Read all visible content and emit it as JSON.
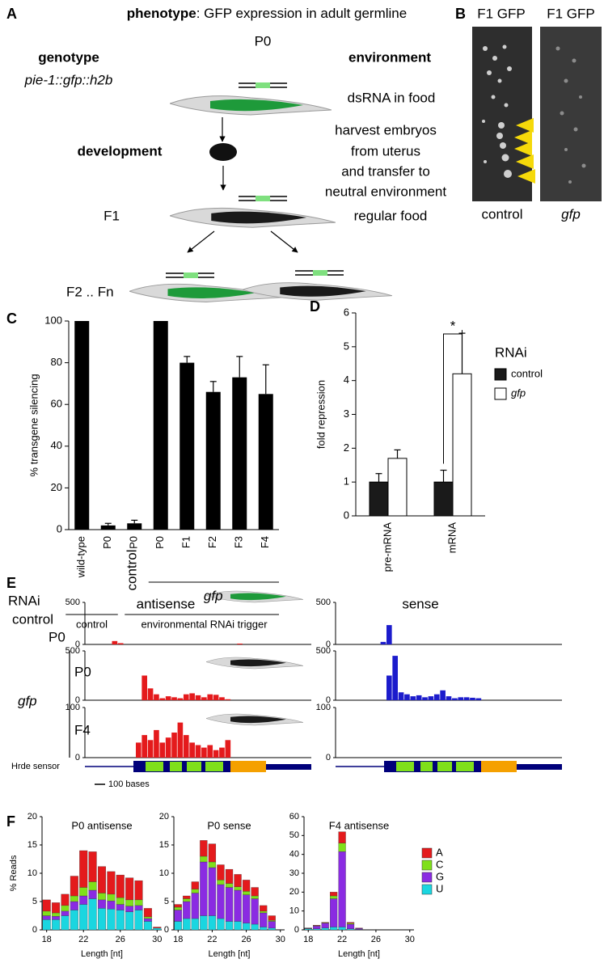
{
  "panel_labels": [
    "A",
    "B",
    "C",
    "D",
    "E",
    "F"
  ],
  "panel_a": {
    "title_bold": "phenotype",
    "title_rest": ": GFP expression in adult germline",
    "p0": "P0",
    "genotype": "genotype",
    "genotype_name": "pie-1::gfp::h2b",
    "environment": "environment",
    "dsrna": "dsRNA in food",
    "development": "development",
    "harvest": [
      "harvest embryos",
      "from uterus",
      "and transfer to",
      "neutral environment"
    ],
    "f1": "F1",
    "regular_food": "regular food",
    "f2": "F2 .. Fn"
  },
  "panel_b": {
    "titles": [
      "F1 GFP",
      "F1 GFP"
    ],
    "captions": [
      "control",
      "gfp"
    ]
  },
  "panel_e": {
    "rnai": "RNAi",
    "control": "control",
    "control_gen": "P0",
    "gfp": "gfp",
    "gfp_gens": [
      "P0",
      "F4"
    ],
    "strands": [
      "antisense",
      "sense"
    ],
    "gene": "Hrde sensor",
    "scale": "100 bases"
  },
  "chart_data": [
    {
      "type": "bar",
      "y_label": "% transgene silencing",
      "categories": [
        "wild-type",
        "P0",
        "P0",
        "P0",
        "F1",
        "F2",
        "F3",
        "F4"
      ],
      "values": [
        100,
        2,
        3,
        100,
        80,
        66,
        73,
        65
      ],
      "errors": [
        0,
        1,
        1.5,
        0,
        3,
        5,
        10,
        14
      ],
      "color": "#000000",
      "ylim": [
        0,
        100
      ],
      "yticks": [
        0,
        20,
        40,
        60,
        80,
        100
      ],
      "group_labels": [
        "control",
        "control",
        "gfp",
        "environmental RNAi trigger"
      ]
    },
    {
      "type": "grouped_bar",
      "y_label": "fold repression",
      "categories": [
        "pre-mRNA",
        "mRNA"
      ],
      "series": [
        {
          "name": "control",
          "color": "#1a1a1a",
          "values": [
            1,
            1
          ],
          "errors": [
            0.25,
            0.35
          ]
        },
        {
          "name": "gfp",
          "color": "#ffffff",
          "values": [
            1.7,
            4.2
          ],
          "errors": [
            0.25,
            1.2
          ]
        }
      ],
      "ylim": [
        0,
        6
      ],
      "yticks": [
        0,
        1,
        2,
        3,
        4,
        5,
        6
      ],
      "legend_title": "RNAi",
      "annotation": "*"
    },
    {
      "type": "coverage",
      "color": "#e41a1c",
      "xlim": [
        0,
        950
      ],
      "ylim": [
        0,
        500
      ],
      "yticks": [
        0,
        500
      ],
      "x": [
        100,
        125,
        150,
        175,
        200,
        225,
        250,
        275,
        300,
        325,
        350,
        375,
        400,
        425,
        450,
        475,
        500,
        525,
        550,
        575,
        600,
        625,
        650
      ],
      "values": [
        0,
        40,
        15,
        0,
        0,
        0,
        0,
        0,
        0,
        0,
        0,
        0,
        0,
        0,
        0,
        0,
        0,
        0,
        0,
        0,
        0,
        0,
        10
      ]
    },
    {
      "type": "coverage",
      "color": "#1c1ccc",
      "xlim": [
        0,
        950
      ],
      "ylim": [
        0,
        500
      ],
      "yticks": [
        0,
        500
      ],
      "x": [
        100,
        125,
        150,
        175,
        200,
        225,
        250,
        275,
        300,
        325,
        350,
        375,
        400,
        425,
        450,
        475,
        500,
        525,
        550,
        575,
        600,
        625,
        650
      ],
      "values": [
        0,
        0,
        0,
        0,
        30,
        230,
        0,
        0,
        0,
        0,
        0,
        0,
        0,
        0,
        0,
        0,
        0,
        0,
        0,
        0,
        0,
        0,
        0
      ]
    },
    {
      "type": "coverage",
      "color": "#e41a1c",
      "xlim": [
        0,
        950
      ],
      "ylim": [
        0,
        500
      ],
      "yticks": [
        0,
        500
      ],
      "x": [
        100,
        125,
        150,
        175,
        200,
        225,
        250,
        275,
        300,
        325,
        350,
        375,
        400,
        425,
        450,
        475,
        500,
        525,
        550,
        575,
        600,
        625,
        650
      ],
      "values": [
        0,
        0,
        0,
        0,
        0,
        0,
        250,
        120,
        60,
        20,
        40,
        30,
        20,
        60,
        70,
        50,
        30,
        60,
        55,
        30,
        10,
        0,
        0
      ]
    },
    {
      "type": "coverage",
      "color": "#1c1ccc",
      "xlim": [
        0,
        950
      ],
      "ylim": [
        0,
        500
      ],
      "yticks": [
        0,
        500
      ],
      "x": [
        100,
        125,
        150,
        175,
        200,
        225,
        250,
        275,
        300,
        325,
        350,
        375,
        400,
        425,
        450,
        475,
        500,
        525,
        550,
        575,
        600,
        625,
        650
      ],
      "values": [
        0,
        0,
        0,
        0,
        0,
        250,
        450,
        80,
        60,
        40,
        50,
        30,
        40,
        60,
        100,
        40,
        20,
        30,
        30,
        25,
        20,
        0,
        0
      ]
    },
    {
      "type": "coverage",
      "color": "#e41a1c",
      "xlim": [
        0,
        950
      ],
      "ylim": [
        0,
        100
      ],
      "yticks": [
        0,
        100
      ],
      "x": [
        100,
        125,
        150,
        175,
        200,
        225,
        250,
        275,
        300,
        325,
        350,
        375,
        400,
        425,
        450,
        475,
        500,
        525,
        550,
        575,
        600,
        625,
        650
      ],
      "values": [
        0,
        0,
        0,
        0,
        0,
        30,
        45,
        35,
        55,
        30,
        40,
        50,
        70,
        45,
        30,
        25,
        20,
        25,
        15,
        20,
        35,
        0,
        0
      ]
    },
    {
      "type": "coverage",
      "color": "#1c1ccc",
      "xlim": [
        0,
        950
      ],
      "ylim": [
        0,
        100
      ],
      "yticks": [
        0,
        100
      ],
      "x": [
        100,
        125,
        150,
        175,
        200,
        225,
        250,
        275,
        300,
        325,
        350,
        375,
        400,
        425,
        450,
        475,
        500,
        525,
        550,
        575,
        600,
        625,
        650
      ],
      "values": [
        0,
        0,
        0,
        0,
        0,
        0,
        0,
        0,
        0,
        0,
        0,
        0,
        0,
        0,
        0,
        0,
        0,
        0,
        0,
        0,
        0,
        0,
        0
      ]
    },
    {
      "type": "stacked_bar",
      "title": "P0 antisense",
      "y_label": "% Reads",
      "x_label": "Length [nt]",
      "x": [
        18,
        19,
        20,
        21,
        22,
        23,
        24,
        25,
        26,
        27,
        28,
        29,
        30
      ],
      "xlim": [
        17.5,
        30.5
      ],
      "xticks": [
        18,
        22,
        26,
        30
      ],
      "ylim": [
        0,
        20
      ],
      "yticks": [
        0,
        5,
        10,
        15,
        20
      ],
      "series": [
        {
          "name": "A",
          "color": "#e41a1c",
          "values": [
            2.0,
            1.8,
            2.0,
            3.5,
            6.5,
            5.3,
            4.7,
            4.0,
            4.0,
            3.9,
            3.4,
            1.5,
            0.2
          ]
        },
        {
          "name": "C",
          "color": "#7fe01a",
          "values": [
            0.8,
            0.6,
            1.0,
            1.0,
            1.5,
            1.5,
            1.2,
            1.2,
            1.2,
            1.1,
            1.0,
            0.3,
            0
          ]
        },
        {
          "name": "G",
          "color": "#8a2be2",
          "values": [
            0.7,
            0.6,
            0.8,
            1.5,
            1.5,
            1.5,
            1.5,
            1.4,
            1.0,
            1.0,
            0.8,
            0.5,
            0
          ]
        },
        {
          "name": "U",
          "color": "#1ad6e0",
          "values": [
            1.8,
            1.8,
            2.5,
            3.5,
            4.5,
            5.5,
            3.8,
            3.7,
            3.5,
            3.2,
            3.5,
            1.5,
            0.3
          ]
        }
      ]
    },
    {
      "type": "stacked_bar",
      "title": "P0 sense",
      "x_label": "Length [nt]",
      "x": [
        18,
        19,
        20,
        21,
        22,
        23,
        24,
        25,
        26,
        27,
        28,
        29,
        30
      ],
      "xlim": [
        17.5,
        30.5
      ],
      "xticks": [
        18,
        22,
        26,
        30
      ],
      "ylim": [
        0,
        20
      ],
      "yticks": [
        0,
        5,
        10,
        15,
        20
      ],
      "series": [
        {
          "name": "A",
          "color": "#e41a1c",
          "values": [
            0.5,
            0.5,
            1.3,
            2.8,
            3.2,
            2.7,
            2.5,
            2.2,
            2.0,
            1.5,
            1.0,
            0.8,
            0
          ]
        },
        {
          "name": "C",
          "color": "#7fe01a",
          "values": [
            0.5,
            0.5,
            0.7,
            1.0,
            1.0,
            0.8,
            0.7,
            0.6,
            0.6,
            0.5,
            0.3,
            0.2,
            0
          ]
        },
        {
          "name": "G",
          "color": "#8a2be2",
          "values": [
            2.0,
            3.0,
            4.5,
            9.5,
            8.5,
            6.0,
            6.0,
            5.5,
            5.0,
            4.5,
            2.5,
            1.2,
            0
          ]
        },
        {
          "name": "U",
          "color": "#1ad6e0",
          "values": [
            1.5,
            2.0,
            2.0,
            2.5,
            2.5,
            2.0,
            1.5,
            1.5,
            1.2,
            1.0,
            0.5,
            0.3,
            0
          ]
        }
      ]
    },
    {
      "type": "stacked_bar",
      "title": "F4 antisense",
      "x_label": "Length [nt]",
      "x": [
        18,
        19,
        20,
        21,
        22,
        23,
        24,
        25,
        26,
        27,
        28,
        29,
        30
      ],
      "xlim": [
        17.5,
        30.5
      ],
      "xticks": [
        18,
        22,
        26,
        30
      ],
      "ylim": [
        0,
        60
      ],
      "yticks": [
        0,
        10,
        20,
        30,
        40,
        50,
        60
      ],
      "series": [
        {
          "name": "A",
          "color": "#e41a1c",
          "values": [
            0.1,
            0.3,
            0.3,
            2,
            6,
            0.5,
            0.2,
            0,
            0,
            0,
            0,
            0,
            0
          ]
        },
        {
          "name": "C",
          "color": "#7fe01a",
          "values": [
            0.1,
            0.2,
            0.2,
            1.5,
            4.5,
            0.5,
            0.1,
            0,
            0,
            0,
            0,
            0,
            0
          ]
        },
        {
          "name": "G",
          "color": "#8a2be2",
          "values": [
            0.3,
            1.5,
            2.5,
            15,
            40,
            2.5,
            0.5,
            0,
            0,
            0,
            0,
            0,
            0
          ]
        },
        {
          "name": "U",
          "color": "#1ad6e0",
          "values": [
            0.5,
            0.5,
            1,
            1.5,
            1.5,
            0.5,
            0.2,
            0,
            0,
            0,
            0,
            0,
            0
          ]
        }
      ]
    }
  ]
}
